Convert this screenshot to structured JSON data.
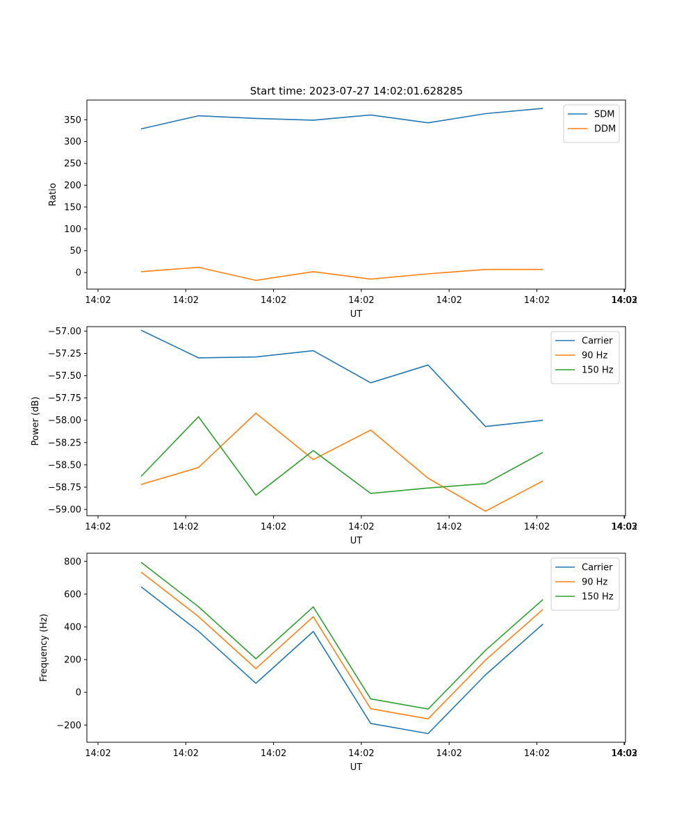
{
  "figure": {
    "title": "Start time: 2023-07-27 14:02:01.628285"
  },
  "chart_data": [
    {
      "type": "line",
      "xlabel": "UT",
      "ylabel": "Ratio",
      "x_tick_labels": [
        "14:02",
        "14:02",
        "14:02",
        "14:02",
        "14:02",
        "14:02",
        "14:02"
      ],
      "x_tick_last_label": "14:03",
      "ylim": [
        -38,
        395
      ],
      "yticks": [
        0,
        50,
        100,
        150,
        200,
        250,
        300,
        350
      ],
      "ytick_labels": [
        "0",
        "50",
        "100",
        "150",
        "200",
        "250",
        "300",
        "350"
      ],
      "legend_position": "top-right",
      "series": [
        {
          "name": "SDM",
          "color": "#1f77b4",
          "values": [
            329,
            359,
            353,
            349,
            361,
            343,
            364,
            376
          ]
        },
        {
          "name": "DDM",
          "color": "#ff7f0e",
          "values": [
            2,
            12,
            -18,
            2,
            -15,
            -3,
            7,
            7
          ]
        }
      ]
    },
    {
      "type": "line",
      "xlabel": "UT",
      "ylabel": "Power (dB)",
      "x_tick_labels": [
        "14:02",
        "14:02",
        "14:02",
        "14:02",
        "14:02",
        "14:02",
        "14:02"
      ],
      "x_tick_last_label": "14:03",
      "ylim": [
        -59.07,
        -56.95
      ],
      "yticks": [
        -57.0,
        -57.25,
        -57.5,
        -57.75,
        -58.0,
        -58.25,
        -58.5,
        -58.75,
        -59.0
      ],
      "ytick_labels": [
        "−57.00",
        "−57.25",
        "−57.50",
        "−57.75",
        "−58.00",
        "−58.25",
        "−58.50",
        "−58.75",
        "−59.00"
      ],
      "legend_position": "top-right",
      "series": [
        {
          "name": "Carrier",
          "color": "#1f77b4",
          "values": [
            -56.99,
            -57.3,
            -57.29,
            -57.22,
            -57.58,
            -57.38,
            -58.07,
            -58.0
          ]
        },
        {
          "name": "90 Hz",
          "color": "#ff7f0e",
          "values": [
            -58.72,
            -58.53,
            -57.92,
            -58.44,
            -58.11,
            -58.65,
            -59.02,
            -58.68
          ]
        },
        {
          "name": "150 Hz",
          "color": "#2ca02c",
          "values": [
            -58.63,
            -57.96,
            -58.84,
            -58.34,
            -58.82,
            -58.76,
            -58.71,
            -58.36
          ]
        }
      ]
    },
    {
      "type": "line",
      "xlabel": "UT",
      "ylabel": "Frequency (Hz)",
      "x_tick_labels": [
        "14:02",
        "14:02",
        "14:02",
        "14:02",
        "14:02",
        "14:02",
        "14:02"
      ],
      "x_tick_last_label": "14:03",
      "ylim": [
        -305,
        850
      ],
      "yticks": [
        -200,
        0,
        200,
        400,
        600,
        800
      ],
      "ytick_labels": [
        "−200",
        "0",
        "200",
        "400",
        "600",
        "800"
      ],
      "legend_position": "top-right",
      "series": [
        {
          "name": "Carrier",
          "color": "#1f77b4",
          "values": [
            645,
            373,
            55,
            372,
            -190,
            -252,
            107,
            417
          ]
        },
        {
          "name": "90 Hz",
          "color": "#ff7f0e",
          "values": [
            735,
            463,
            145,
            462,
            -100,
            -162,
            197,
            507
          ]
        },
        {
          "name": "150 Hz",
          "color": "#2ca02c",
          "values": [
            795,
            523,
            205,
            522,
            -40,
            -102,
            257,
            567
          ]
        }
      ]
    }
  ]
}
